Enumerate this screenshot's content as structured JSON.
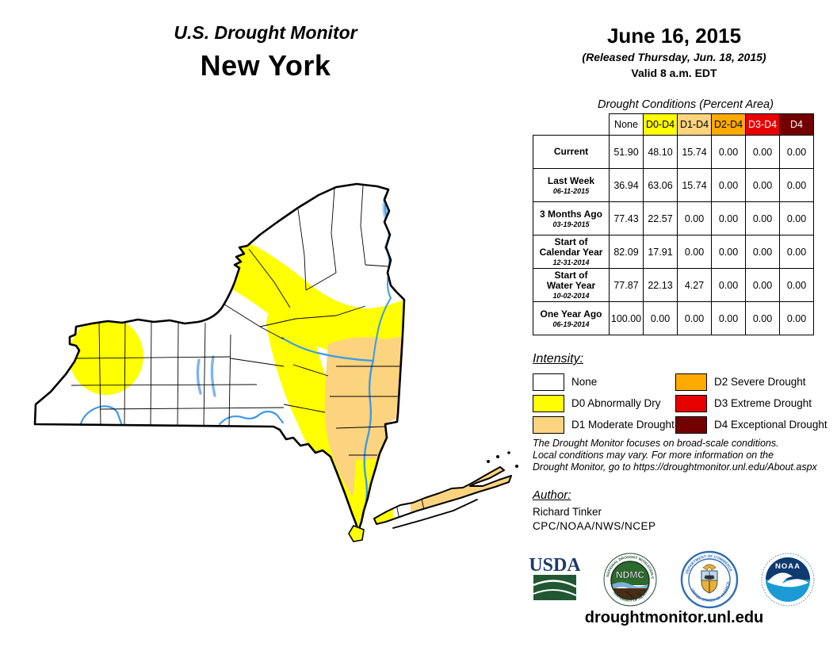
{
  "header": {
    "title": "U.S. Drought Monitor",
    "region": "New York",
    "date": "June 16, 2015",
    "released": "(Released Thursday, Jun. 18, 2015)",
    "valid": "Valid 8 a.m. EDT"
  },
  "table": {
    "title": "Drought Conditions (Percent Area)",
    "columns": [
      {
        "label": "None",
        "bg": "#FFFFFF",
        "fg": "#000000"
      },
      {
        "label": "D0-D4",
        "bg": "#FFFF00",
        "fg": "#000000"
      },
      {
        "label": "D1-D4",
        "bg": "#FCD37F",
        "fg": "#000000"
      },
      {
        "label": "D2-D4",
        "bg": "#FFAA00",
        "fg": "#000000"
      },
      {
        "label": "D3-D4",
        "bg": "#E60000",
        "fg": "#FFFFFF"
      },
      {
        "label": "D4",
        "bg": "#730000",
        "fg": "#FFFFFF"
      }
    ],
    "rows": [
      {
        "label": "Current",
        "date": "",
        "values": [
          "51.90",
          "48.10",
          "15.74",
          "0.00",
          "0.00",
          "0.00"
        ]
      },
      {
        "label": "Last Week",
        "date": "06-11-2015",
        "values": [
          "36.94",
          "63.06",
          "15.74",
          "0.00",
          "0.00",
          "0.00"
        ]
      },
      {
        "label": "3 Months Ago",
        "date": "03-19-2015",
        "values": [
          "77.43",
          "22.57",
          "0.00",
          "0.00",
          "0.00",
          "0.00"
        ]
      },
      {
        "label": "Start of\nCalendar Year",
        "date": "12-31-2014",
        "values": [
          "82.09",
          "17.91",
          "0.00",
          "0.00",
          "0.00",
          "0.00"
        ]
      },
      {
        "label": "Start of\nWater Year",
        "date": "10-02-2014",
        "values": [
          "77.87",
          "22.13",
          "4.27",
          "0.00",
          "0.00",
          "0.00"
        ]
      },
      {
        "label": "One Year Ago",
        "date": "06-19-2014",
        "values": [
          "100.00",
          "0.00",
          "0.00",
          "0.00",
          "0.00",
          "0.00"
        ]
      }
    ]
  },
  "legend": {
    "title": "Intensity:",
    "items": [
      {
        "label": "None",
        "color": "#FFFFFF"
      },
      {
        "label": "D0 Abnormally Dry",
        "color": "#FFFF00"
      },
      {
        "label": "D1 Moderate Drought",
        "color": "#FCD37F"
      },
      {
        "label": "D2 Severe Drought",
        "color": "#FFAA00"
      },
      {
        "label": "D3 Extreme Drought",
        "color": "#E60000"
      },
      {
        "label": "D4 Exceptional Drought",
        "color": "#730000"
      }
    ]
  },
  "disclaimer": "The Drought Monitor focuses on broad-scale conditions.\nLocal conditions may vary. For more information on the\nDrought Monitor, go to https://droughtmonitor.unl.edu/About.aspx",
  "author": {
    "title": "Author:",
    "name": "Richard Tinker",
    "org": "CPC/NOAA/NWS/NCEP"
  },
  "logos": {
    "usda_text": "USDA",
    "ndmc_text": "NDMC",
    "ndmc_ring_top": "NATIONAL DROUGHT MITIGATION CENTER",
    "ndmc_ring_bottom": "UNIVERSITY OF NEBRASKA",
    "doc_ring_top": "DEPARTMENT OF COMMERCE",
    "doc_ring_bottom": "UNITED STATES OF AMERICA",
    "noaa_text": "NOAA"
  },
  "footer": {
    "url": "droughtmonitor.unl.edu"
  },
  "map": {
    "state": "New York",
    "category_colors": {
      "None": "#FFFFFF",
      "D0": "#FFFF00",
      "D1": "#FCD37F",
      "D2": "#FFAA00",
      "D3": "#E60000",
      "D4": "#730000"
    },
    "depicted_regions": [
      {
        "category": "D0 Abnormally Dry",
        "areas": [
          "western New York around Niagara / Buffalo",
          "band from eastern Lake Ontario across the southwestern Adirondacks to the eastern border",
          "central corridor running south to the lower Hudson and New York City",
          "western tip of Long Island and Staten Island"
        ]
      },
      {
        "category": "D1 Moderate Drought",
        "areas": [
          "Catskills and mid-Hudson Valley to the eastern border",
          "most of Long Island"
        ]
      },
      {
        "category": "None",
        "areas": [
          "Finger Lakes and western Southern Tier",
          "northern Adirondacks and St. Lawrence valley",
          "gap on west-central Long Island"
        ]
      }
    ]
  }
}
